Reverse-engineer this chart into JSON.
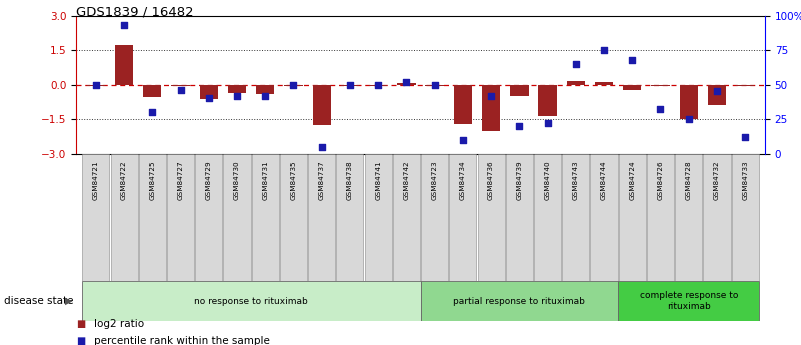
{
  "title": "GDS1839 / 16482",
  "samples": [
    "GSM84721",
    "GSM84722",
    "GSM84725",
    "GSM84727",
    "GSM84729",
    "GSM84730",
    "GSM84731",
    "GSM84735",
    "GSM84737",
    "GSM84738",
    "GSM84741",
    "GSM84742",
    "GSM84723",
    "GSM84734",
    "GSM84736",
    "GSM84739",
    "GSM84740",
    "GSM84743",
    "GSM84744",
    "GSM84724",
    "GSM84726",
    "GSM84728",
    "GSM84732",
    "GSM84733"
  ],
  "log2_ratio": [
    -0.05,
    1.7,
    -0.55,
    -0.05,
    -0.65,
    -0.35,
    -0.4,
    -0.05,
    -1.75,
    -0.05,
    -0.05,
    0.05,
    -0.05,
    -1.7,
    -2.0,
    -0.5,
    -1.35,
    0.15,
    0.1,
    -0.25,
    -0.05,
    -1.5,
    -0.9,
    -0.05
  ],
  "percentile": [
    50,
    93,
    30,
    46,
    40,
    42,
    42,
    50,
    5,
    50,
    50,
    52,
    50,
    10,
    42,
    20,
    22,
    65,
    75,
    68,
    32,
    25,
    45,
    12
  ],
  "groups": [
    {
      "label": "no response to rituximab",
      "start": 0,
      "end": 12,
      "color": "#c8edc8"
    },
    {
      "label": "partial response to rituximab",
      "start": 12,
      "end": 19,
      "color": "#90d890"
    },
    {
      "label": "complete response to\nrituximab",
      "start": 19,
      "end": 24,
      "color": "#44cc44"
    }
  ],
  "ylim": [
    -3,
    3
  ],
  "yticks_left": [
    -3,
    -1.5,
    0,
    1.5,
    3
  ],
  "yticks_right": [
    0,
    25,
    50,
    75,
    100
  ],
  "bar_color": "#9b2222",
  "dot_color": "#1a1aaa",
  "hline_color": "#cc0000",
  "grid_color": "#333333",
  "background_color": "#ffffff",
  "legend_items": [
    "log2 ratio",
    "percentile rank within the sample"
  ]
}
